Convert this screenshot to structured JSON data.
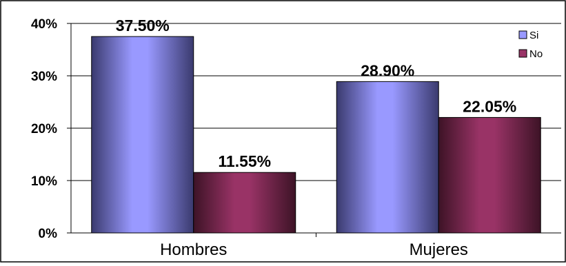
{
  "chart_data": {
    "type": "bar",
    "categories": [
      "Hombres",
      "Mujeres"
    ],
    "series": [
      {
        "name": "Si",
        "values": [
          37.5,
          28.9
        ],
        "labels": [
          "37.50%",
          "28.90%"
        ],
        "color": "#9999ff"
      },
      {
        "name": "No",
        "values": [
          11.55,
          22.05
        ],
        "labels": [
          "11.55%",
          "22.05%"
        ],
        "color": "#993366"
      }
    ],
    "ylim": [
      0,
      40
    ],
    "yticks": [
      "0%",
      "10%",
      "20%",
      "30%",
      "40%"
    ],
    "grid": true,
    "legend_position": "top-right"
  }
}
